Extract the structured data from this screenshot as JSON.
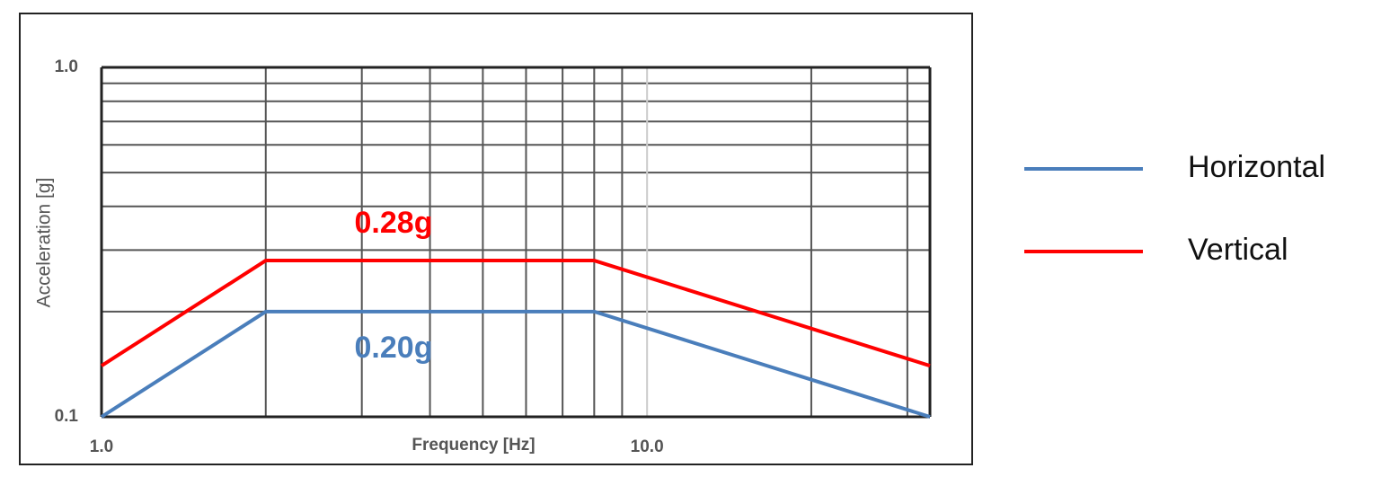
{
  "chart_data": {
    "type": "line",
    "xlabel": "Frequency [Hz]",
    "ylabel": "Acceleration [g]",
    "xscale": "log",
    "yscale": "log",
    "grid": true,
    "xlim": [
      1,
      33
    ],
    "ylim": [
      0.1,
      1
    ],
    "xticks": [
      {
        "value": 1,
        "label": "1.0"
      },
      {
        "value": 10,
        "label": "10.0"
      }
    ],
    "yticks": [
      {
        "value": 0.1,
        "label": "0.1"
      },
      {
        "value": 1,
        "label": "1.0"
      }
    ],
    "x_minor_grid": [
      2,
      3,
      4,
      5,
      6,
      7,
      8,
      9,
      20,
      30
    ],
    "y_minor_grid": [
      0.2,
      0.3,
      0.4,
      0.5,
      0.6,
      0.7,
      0.8,
      0.9
    ],
    "legend": "right",
    "series": [
      {
        "name": "Horizontal",
        "color": "#4a7ebb",
        "x": [
          1,
          2,
          8,
          33
        ],
        "values": [
          0.1,
          0.2,
          0.2,
          0.1
        ],
        "annotation": "0.20g"
      },
      {
        "name": "Vertical",
        "color": "#ff0000",
        "x": [
          1,
          2,
          8,
          33
        ],
        "values": [
          0.14,
          0.28,
          0.28,
          0.14
        ],
        "annotation": "0.28g"
      }
    ]
  }
}
